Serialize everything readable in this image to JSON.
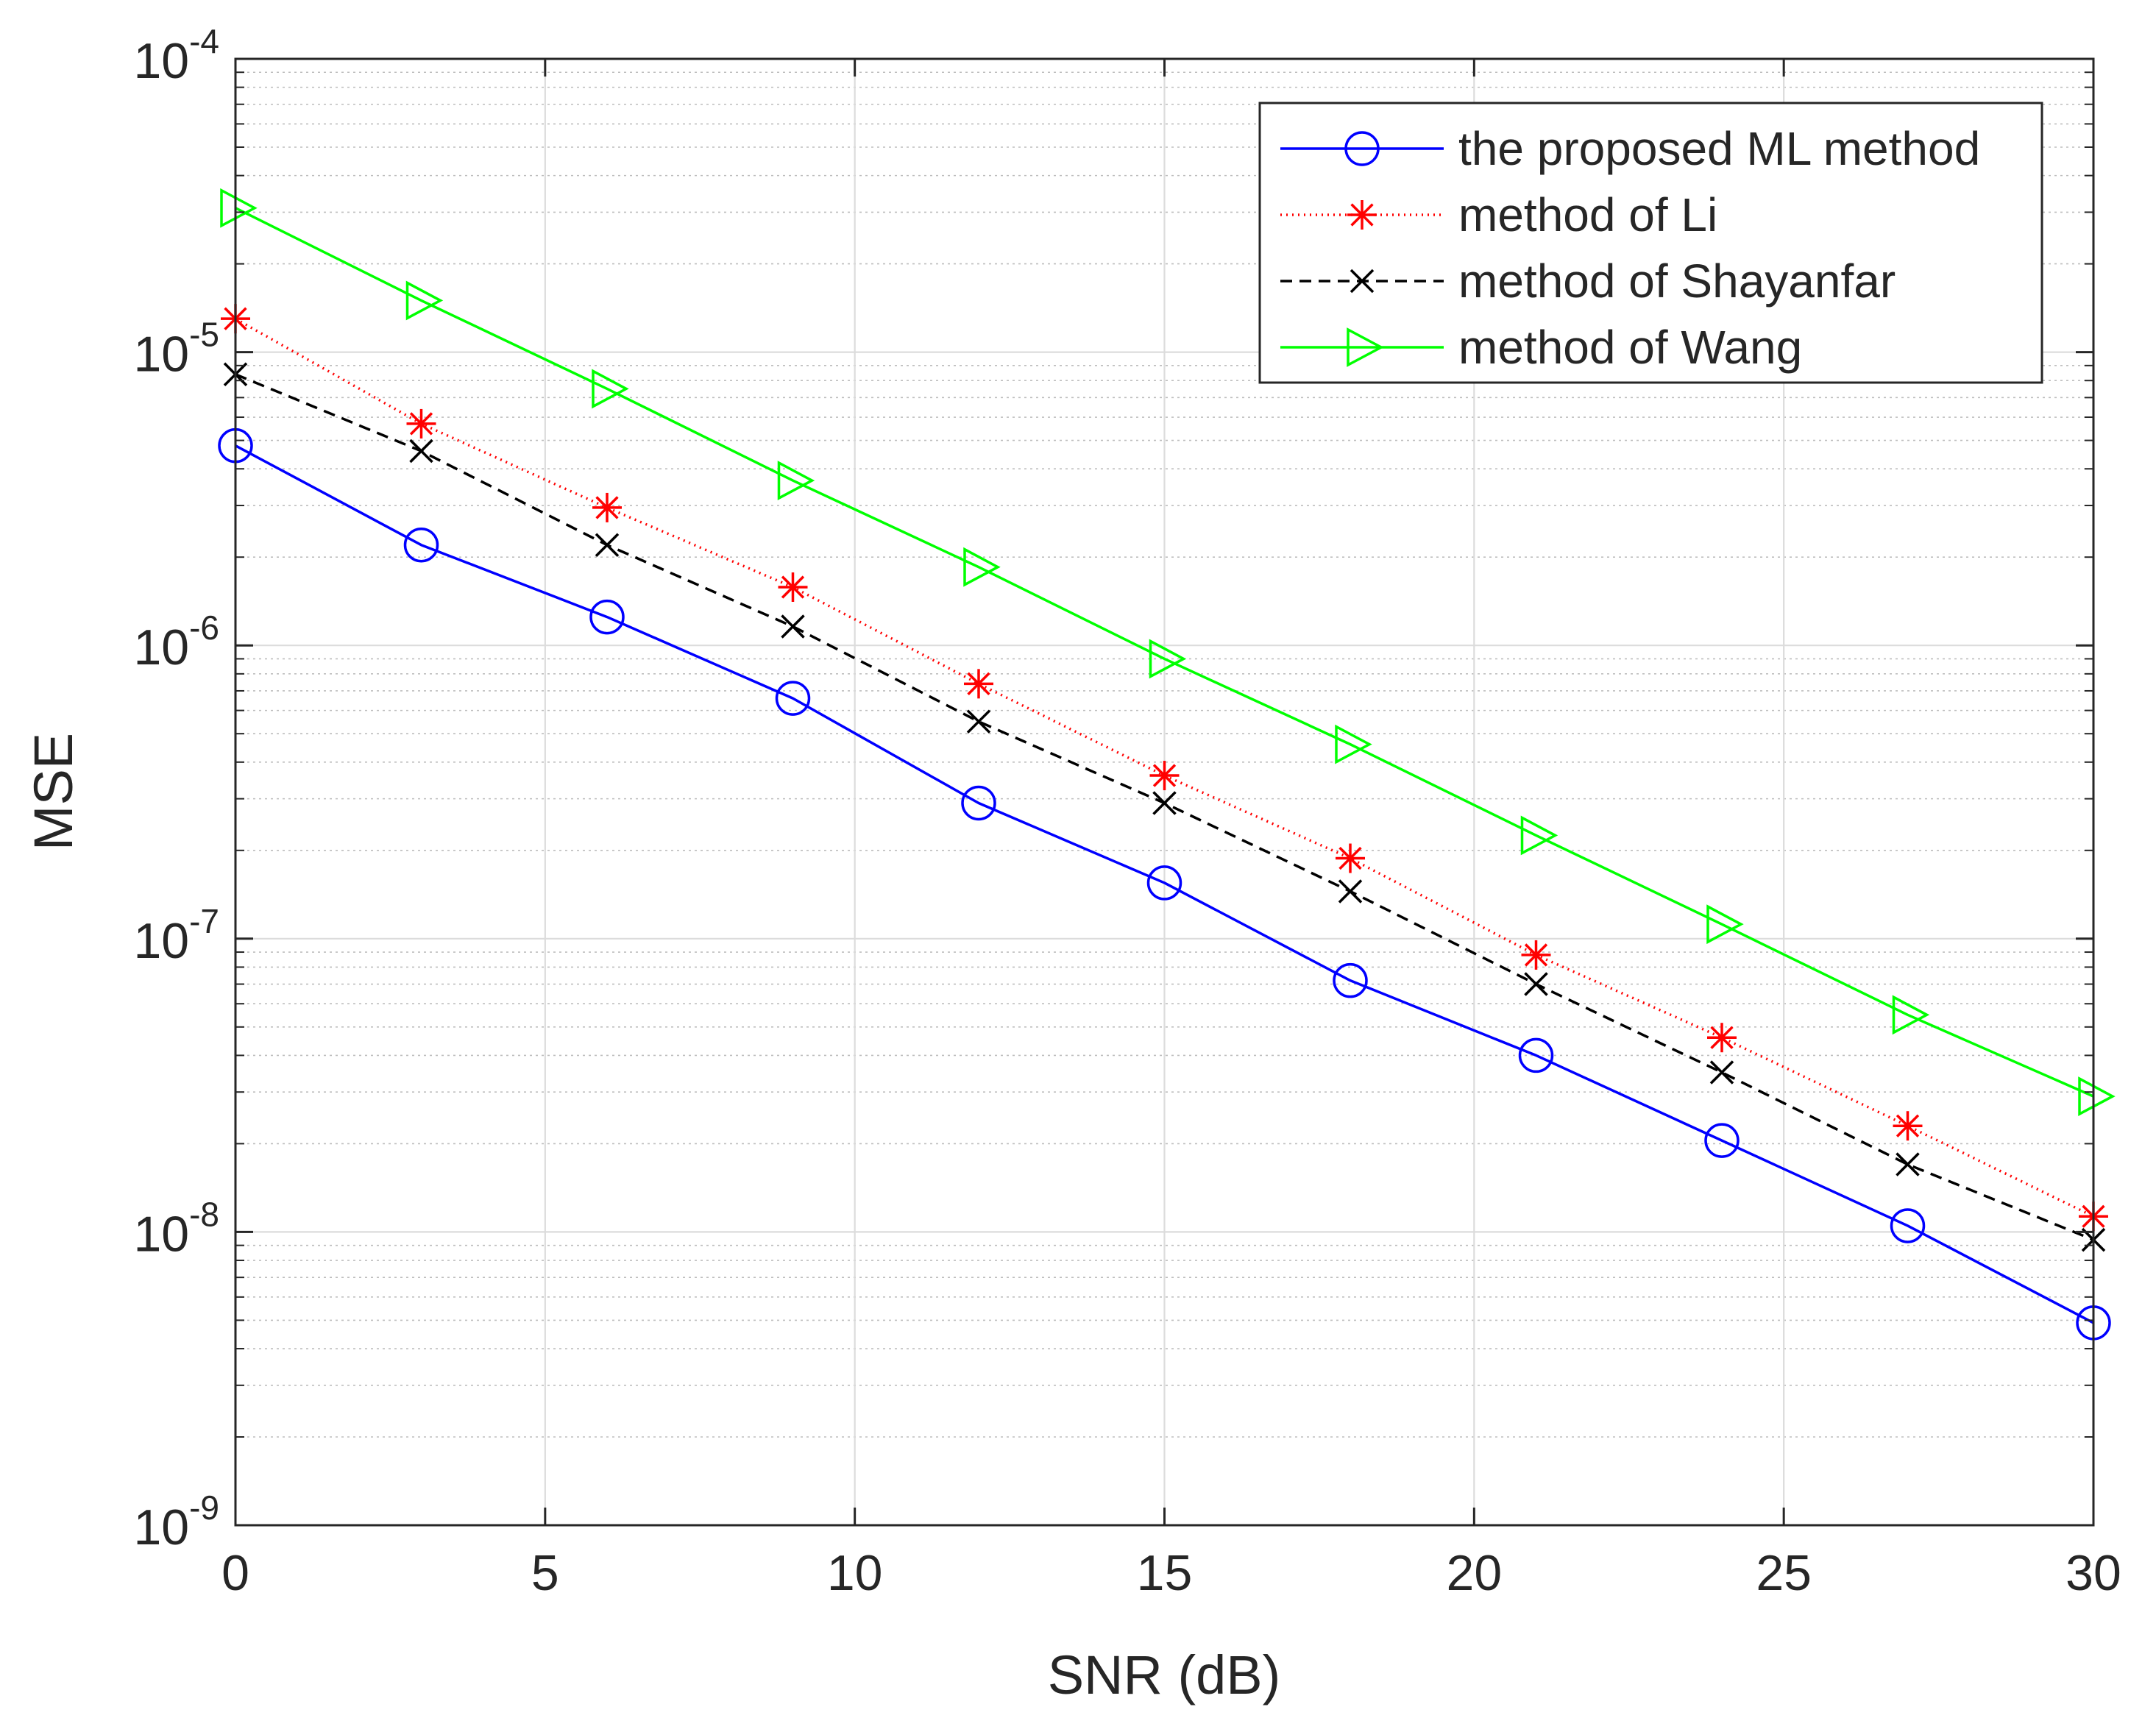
{
  "chart_data": {
    "type": "line",
    "title": "",
    "xlabel": "SNR (dB)",
    "ylabel": "MSE",
    "xscale": "linear",
    "yscale": "log",
    "xlim": [
      0,
      30
    ],
    "ylim": [
      1e-09,
      0.0001
    ],
    "grid": true,
    "minor_grid": true,
    "legend_position": "top-right",
    "x_ticks": [
      {
        "value": 0,
        "label": "0"
      },
      {
        "value": 5,
        "label": "5"
      },
      {
        "value": 10,
        "label": "10"
      },
      {
        "value": 15,
        "label": "15"
      },
      {
        "value": 20,
        "label": "20"
      },
      {
        "value": 25,
        "label": "25"
      },
      {
        "value": 30,
        "label": "30"
      }
    ],
    "y_ticks": [
      {
        "value": 1e-09,
        "base": "10",
        "exponent": "-9"
      },
      {
        "value": 1e-08,
        "base": "10",
        "exponent": "-8"
      },
      {
        "value": 1e-07,
        "base": "10",
        "exponent": "-7"
      },
      {
        "value": 1e-06,
        "base": "10",
        "exponent": "-6"
      },
      {
        "value": 1e-05,
        "base": "10",
        "exponent": "-5"
      },
      {
        "value": 0.0001,
        "base": "10",
        "exponent": "-4"
      }
    ],
    "x": [
      0,
      3,
      6,
      9,
      12,
      15,
      18,
      21,
      24,
      27,
      30
    ],
    "series": [
      {
        "name": "the proposed ML method",
        "color": "#0000ff",
        "line_style": "solid",
        "marker": "circle",
        "values": [
          4.8e-06,
          2.2e-06,
          1.25e-06,
          6.6e-07,
          2.9e-07,
          1.55e-07,
          7.2e-08,
          4e-08,
          2.05e-08,
          1.05e-08,
          4.9e-09
        ]
      },
      {
        "name": "method of Li",
        "color": "#ff0000",
        "line_style": "dotted",
        "marker": "asterisk",
        "values": [
          1.3e-05,
          5.7e-06,
          2.95e-06,
          1.58e-06,
          7.4e-07,
          3.6e-07,
          1.88e-07,
          8.8e-08,
          4.6e-08,
          2.3e-08,
          1.13e-08
        ]
      },
      {
        "name": "method of Shayanfar",
        "color": "#000000",
        "line_style": "dashed",
        "marker": "x",
        "values": [
          8.4e-06,
          4.6e-06,
          2.2e-06,
          1.16e-06,
          5.5e-07,
          2.9e-07,
          1.45e-07,
          7e-08,
          3.5e-08,
          1.7e-08,
          9.4e-09
        ]
      },
      {
        "name": "method of Wang",
        "color": "#00ff00",
        "line_style": "solid",
        "marker": "triangle-right",
        "values": [
          3.1e-05,
          1.5e-05,
          7.5e-06,
          3.65e-06,
          1.85e-06,
          9e-07,
          4.6e-07,
          2.25e-07,
          1.12e-07,
          5.5e-08,
          2.9e-08
        ]
      }
    ]
  }
}
